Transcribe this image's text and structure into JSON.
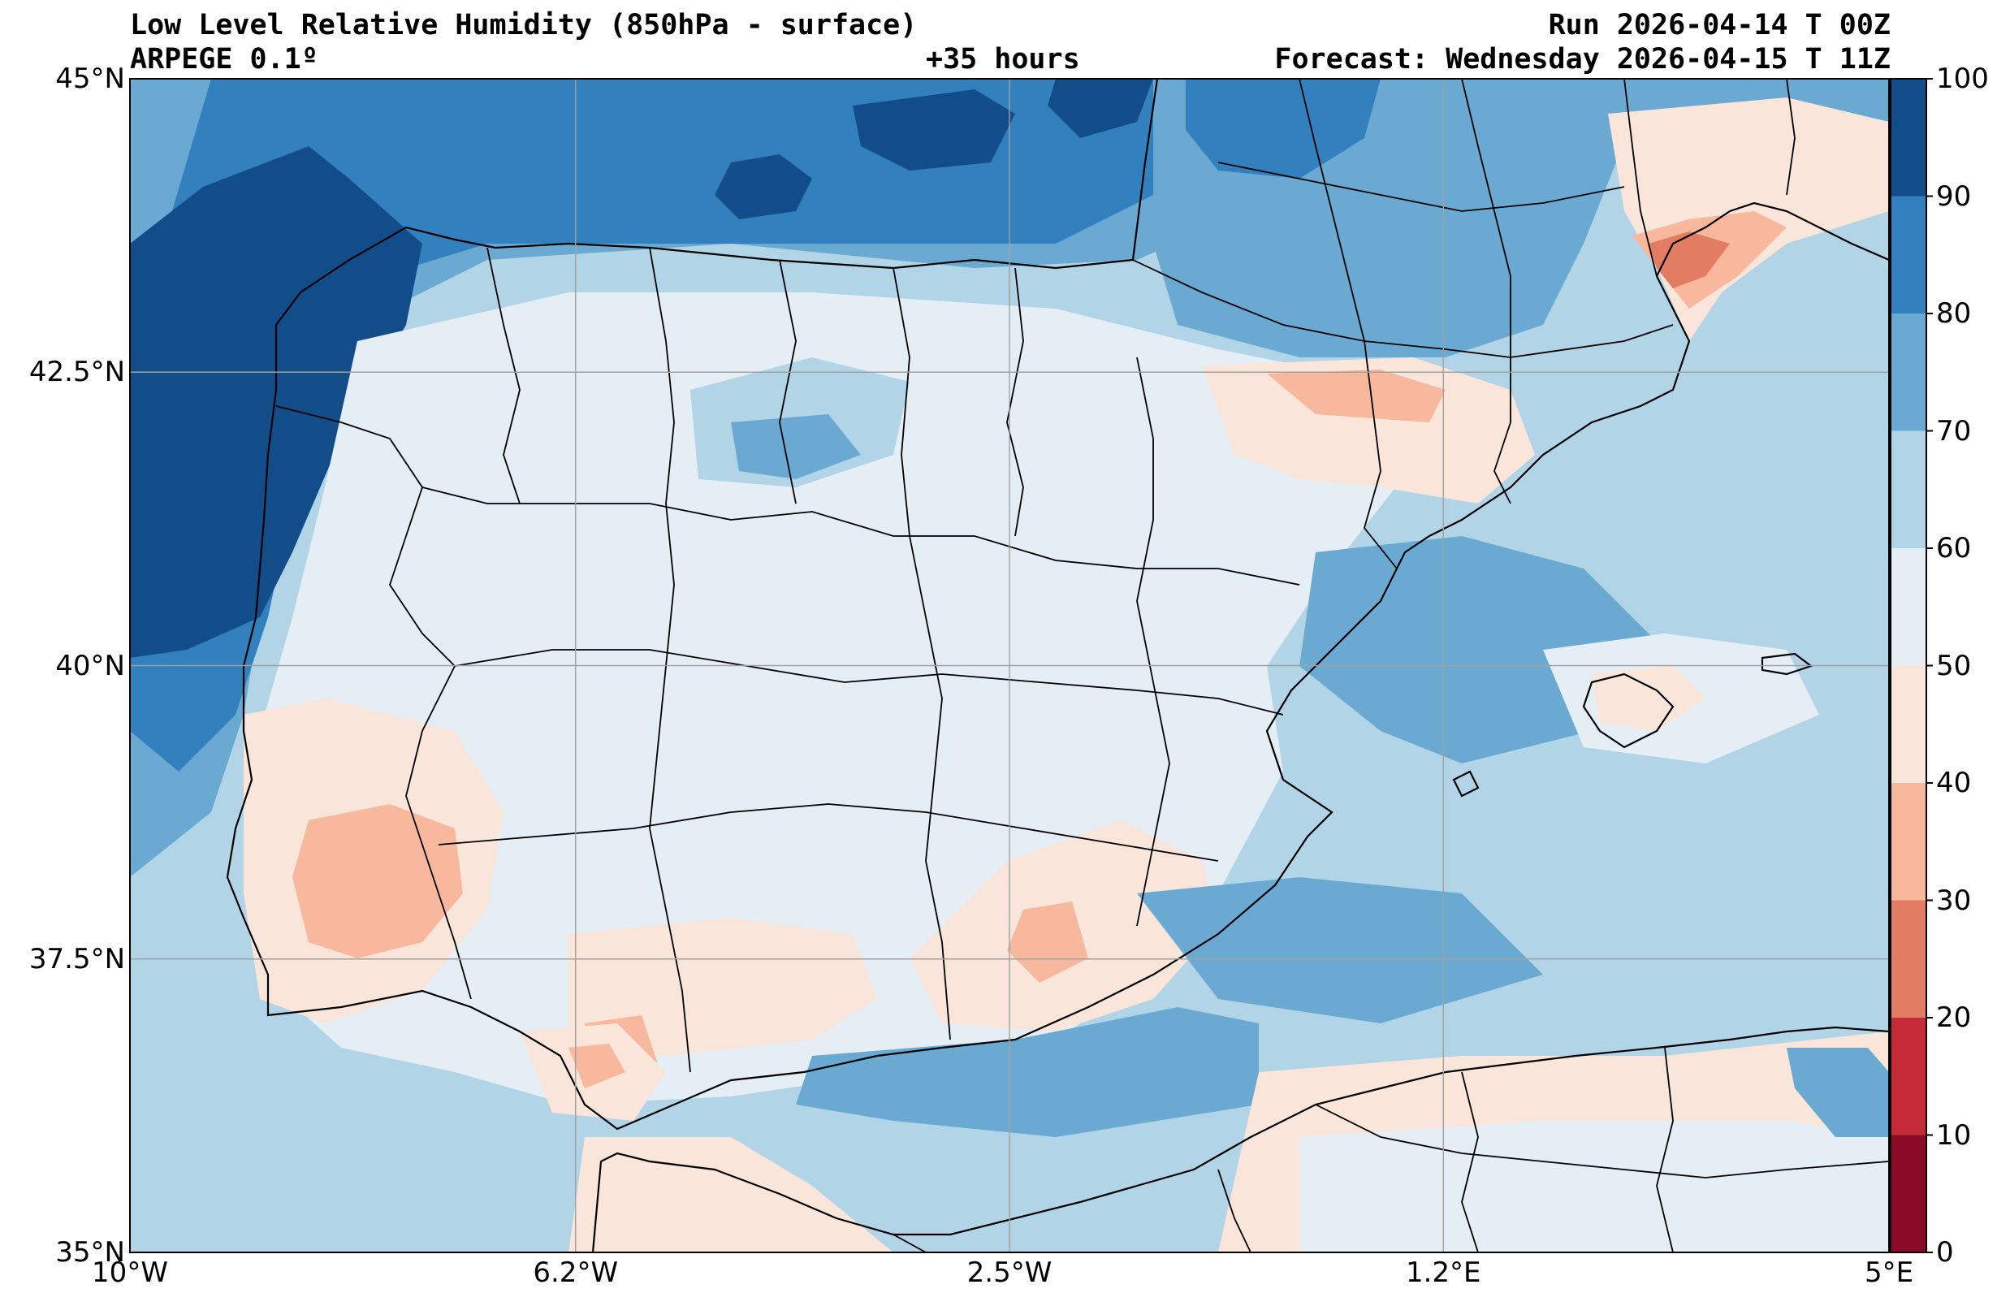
{
  "header": {
    "title": "Low Level Relative Humidity (850hPa - surface)",
    "model": "ARPEGE 0.1º",
    "run": "Run 2026-04-14 T 00Z",
    "lead": "+35 hours",
    "forecast": "Forecast: Wednesday 2026-04-15 T 11Z"
  },
  "map": {
    "projection": "PlateCarree",
    "extent": {
      "lon_min": -10,
      "lon_max": 5,
      "lat_min": 35,
      "lat_max": 45
    },
    "lon_ticks": [
      {
        "value": -10,
        "label": "10°W"
      },
      {
        "value": -6.2,
        "label": "6.2°W"
      },
      {
        "value": -2.5,
        "label": "2.5°W"
      },
      {
        "value": 1.2,
        "label": "1.2°E"
      },
      {
        "value": 5,
        "label": "5°E"
      }
    ],
    "lat_ticks": [
      {
        "value": 45,
        "label": "45°N"
      },
      {
        "value": 42.5,
        "label": "42.5°N"
      },
      {
        "value": 40,
        "label": "40°N"
      },
      {
        "value": 37.5,
        "label": "37.5°N"
      },
      {
        "value": 35,
        "label": "35°N"
      }
    ],
    "gridlines": true
  },
  "colorbar": {
    "levels": [
      0,
      10,
      20,
      30,
      40,
      50,
      60,
      70,
      80,
      90,
      100
    ],
    "labels": [
      "0",
      "10",
      "20",
      "30",
      "40",
      "50",
      "60",
      "70",
      "80",
      "90",
      "100"
    ],
    "colors": [
      "#8b0a26",
      "#c42b36",
      "#e27c62",
      "#f7b89d",
      "#fae5da",
      "#e5eef5",
      "#b2d4e7",
      "#6aaad2",
      "#3380be",
      "#124d8a"
    ]
  }
}
